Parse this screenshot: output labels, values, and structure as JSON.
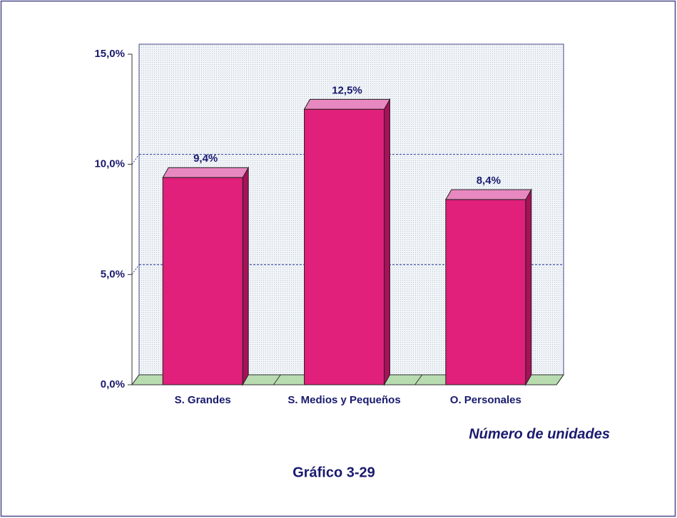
{
  "chart_data": {
    "type": "bar",
    "categories": [
      "S. Grandes",
      "S. Medios y Pequeños",
      "O. Personales"
    ],
    "values": [
      9.4,
      12.5,
      8.4
    ],
    "value_labels": [
      "9,4%",
      "12,5%",
      "8,4%"
    ],
    "color": "#e0207a",
    "ylim": [
      0,
      15
    ],
    "yticks": [
      {
        "value": 0,
        "label": "0,0%"
      },
      {
        "value": 5,
        "label": "5,0%"
      },
      {
        "value": 10,
        "label": "10,0%"
      },
      {
        "value": 15,
        "label": "15,0%"
      }
    ],
    "grid": true,
    "x_label": "Número de unidades",
    "caption": "Gráfico 3-29"
  }
}
